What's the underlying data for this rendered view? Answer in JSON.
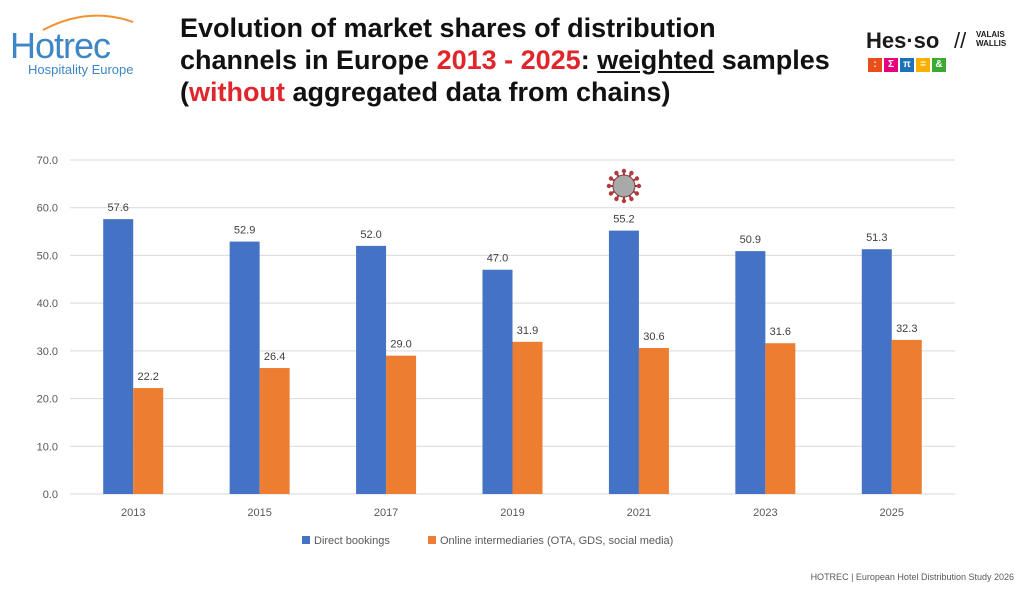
{
  "header": {
    "title_part1": "Evolution of market shares of distribution channels in Europe ",
    "title_years": "2013 - 2025",
    "title_colon": ": ",
    "title_weighted": "weighted",
    "title_part2": " samples (",
    "title_without": "without",
    "title_part3": " aggregated data from chains)"
  },
  "logo_left": {
    "brand": "Hotrec",
    "tagline": "Hospitality Europe"
  },
  "logo_right": {
    "brand": "Hes·so",
    "region_line1": "VALAIS",
    "region_line2": "WALLIS",
    "tiles": [
      ":",
      "Σ",
      "π",
      "=",
      "&"
    ],
    "tile_colors": [
      "#e94e1b",
      "#e6007e",
      "#1d71b8",
      "#f9b000",
      "#3aaa35"
    ]
  },
  "colors": {
    "direct": "#4472c4",
    "online": "#ed7d31",
    "grid": "#d9d9d9",
    "axis_text": "#595959"
  },
  "chart_data": {
    "type": "bar",
    "categories": [
      "2013",
      "2015",
      "2017",
      "2019",
      "2021",
      "2023",
      "2025"
    ],
    "series": [
      {
        "name": "Direct bookings",
        "values": [
          57.6,
          52.9,
          52.0,
          47.0,
          55.2,
          50.9,
          51.3
        ]
      },
      {
        "name": "Online intermediaries (OTA, GDS, social media)",
        "values": [
          22.2,
          26.4,
          29.0,
          31.9,
          30.6,
          31.6,
          32.3
        ]
      }
    ],
    "yticks": [
      "0.0",
      "10.0",
      "20.0",
      "30.0",
      "40.0",
      "50.0",
      "60.0",
      "70.0"
    ],
    "ylim": [
      0,
      70
    ],
    "grid": true,
    "legend_position": "bottom",
    "annotation": "virus-icon above 2021"
  },
  "footer": {
    "source": "HOTREC | European Hotel Distribution Study 2026"
  }
}
